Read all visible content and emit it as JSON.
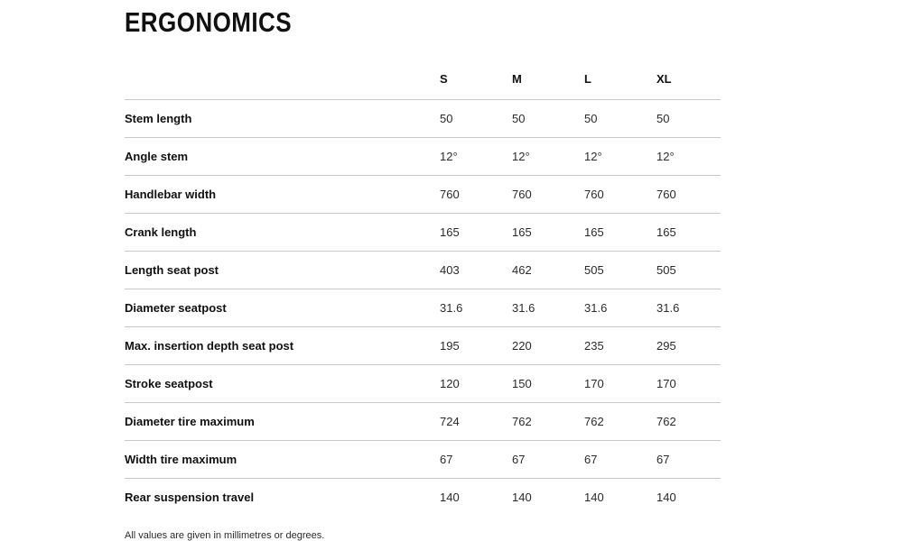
{
  "page": {
    "title": "ERGONOMICS",
    "footnote": "All values are given in millimetres or degrees."
  },
  "table": {
    "columns": [
      "S",
      "M",
      "L",
      "XL"
    ],
    "rows": [
      {
        "label": "Stem length",
        "values": [
          "50",
          "50",
          "50",
          "50"
        ]
      },
      {
        "label": "Angle stem",
        "values": [
          "12°",
          "12°",
          "12°",
          "12°"
        ]
      },
      {
        "label": "Handlebar width",
        "values": [
          "760",
          "760",
          "760",
          "760"
        ]
      },
      {
        "label": "Crank length",
        "values": [
          "165",
          "165",
          "165",
          "165"
        ]
      },
      {
        "label": "Length seat post",
        "values": [
          "403",
          "462",
          "505",
          "505"
        ]
      },
      {
        "label": "Diameter seatpost",
        "values": [
          "31.6",
          "31.6",
          "31.6",
          "31.6"
        ]
      },
      {
        "label": "Max. insertion depth seat post",
        "values": [
          "195",
          "220",
          "235",
          "295"
        ]
      },
      {
        "label": "Stroke seatpost",
        "values": [
          "120",
          "150",
          "170",
          "170"
        ]
      },
      {
        "label": "Diameter tire maximum",
        "values": [
          "724",
          "762",
          "762",
          "762"
        ]
      },
      {
        "label": "Width tire maximum",
        "values": [
          "67",
          "67",
          "67",
          "67"
        ]
      },
      {
        "label": "Rear suspension travel",
        "values": [
          "140",
          "140",
          "140",
          "140"
        ]
      }
    ]
  }
}
